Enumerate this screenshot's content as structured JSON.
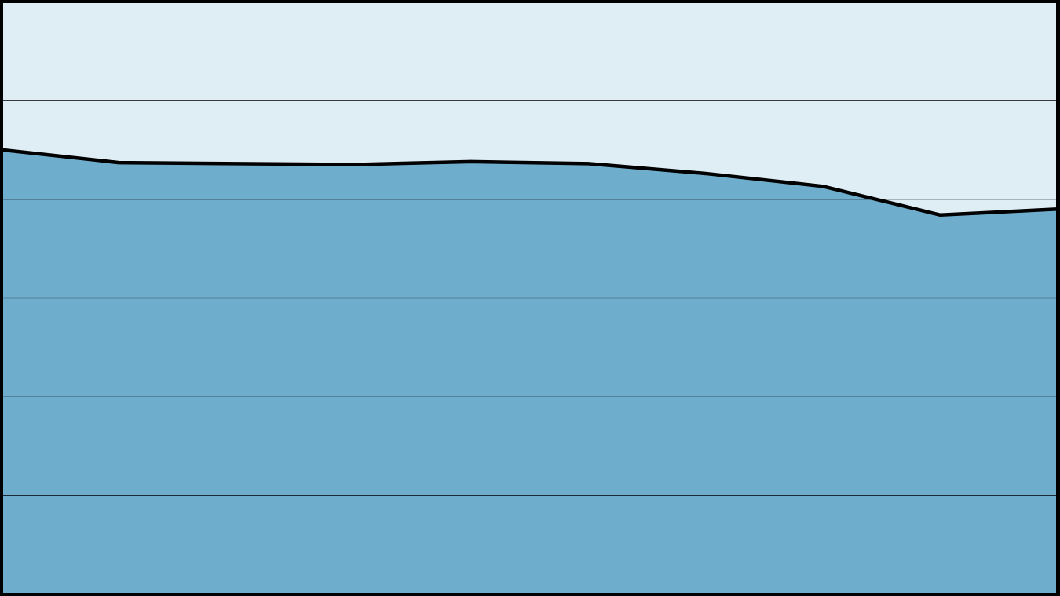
{
  "chart_data": {
    "type": "area",
    "title": "",
    "xlabel": "",
    "ylabel": "",
    "x": [
      0,
      1,
      2,
      3,
      4,
      5,
      6,
      7,
      8,
      9
    ],
    "series": [
      {
        "values": [
          4.5,
          4.37,
          4.36,
          4.35,
          4.38,
          4.36,
          4.26,
          4.13,
          3.84,
          3.9
        ]
      }
    ],
    "ylim": [
      0,
      6
    ],
    "xlim": [
      0,
      9
    ],
    "grid": true,
    "legend": "none",
    "colors": {
      "plot_background": "#dfedf4",
      "area_fill": "#6fadcd",
      "line": "#000000",
      "grid": "#000000",
      "frame": "#000000"
    }
  }
}
